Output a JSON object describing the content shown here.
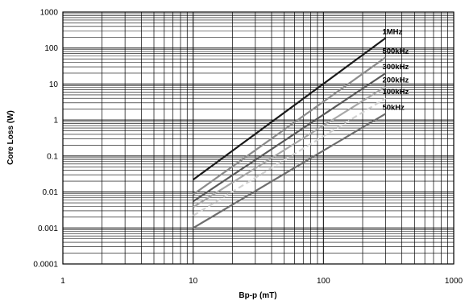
{
  "chart_data": {
    "type": "line",
    "title": "",
    "xlabel": "Bp-p (mT)",
    "ylabel": "Core Loss (W)",
    "x_scale": "log",
    "y_scale": "log",
    "xlim": [
      1,
      1000
    ],
    "ylim": [
      0.0001,
      1000
    ],
    "grid": true,
    "x_ticks": [
      "1",
      "10",
      "100",
      "1000"
    ],
    "y_ticks": [
      "0.0001",
      "0.001",
      "0.01",
      "0.1",
      "1",
      "10",
      "100",
      "1000"
    ],
    "series": [
      {
        "name": "1MHz",
        "color": "#1a1a1a",
        "dashed": false,
        "x": [
          10,
          300
        ],
        "y": [
          0.022,
          190
        ]
      },
      {
        "name": "500kHz",
        "color": "#8c8c8c",
        "dashed": false,
        "x": [
          10,
          300
        ],
        "y": [
          0.0085,
          55
        ]
      },
      {
        "name": "300kHz",
        "color": "#5a5a5a",
        "dashed": false,
        "x": [
          10,
          300
        ],
        "y": [
          0.0055,
          20
        ]
      },
      {
        "name": "200kHz",
        "color": "#a8a8a8",
        "dashed": false,
        "x": [
          10,
          300
        ],
        "y": [
          0.0038,
          8.5
        ]
      },
      {
        "name": "100kHz",
        "color": "#d2d2d2",
        "dashed": true,
        "x": [
          10,
          300
        ],
        "y": [
          0.0022,
          4.0
        ]
      },
      {
        "name": "50kHz",
        "color": "#6e6e6e",
        "dashed": false,
        "x": [
          10,
          300
        ],
        "y": [
          0.001,
          1.5
        ]
      }
    ]
  }
}
